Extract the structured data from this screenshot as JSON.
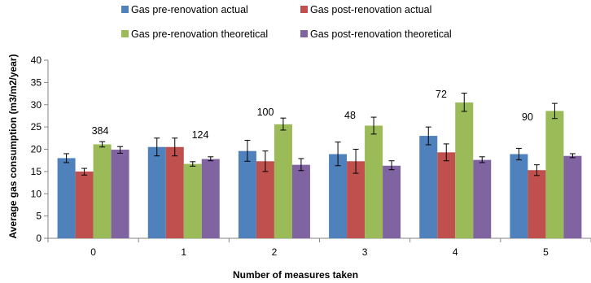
{
  "chart_data": {
    "type": "bar",
    "title": "",
    "xlabel": "Number of measures taken",
    "ylabel": "Average gas consumption (m3/m2/year)",
    "ylim": [
      0,
      40
    ],
    "yticks": [
      "0",
      "5",
      "10",
      "15",
      "20",
      "25",
      "30",
      "35",
      "40"
    ],
    "grid": false,
    "legend_position": "top",
    "categories": [
      "0",
      "1",
      "2",
      "3",
      "4",
      "5"
    ],
    "annotations": [
      "384",
      "124",
      "100",
      "48",
      "72",
      "90"
    ],
    "series": [
      {
        "name": "Gas pre-renovation actual",
        "color": "#4f81bd",
        "values": [
          18.0,
          20.5,
          19.6,
          18.9,
          23.0,
          18.9
        ],
        "error_low": [
          17.0,
          18.5,
          17.3,
          16.3,
          21.0,
          17.6
        ],
        "error_high": [
          19.0,
          22.5,
          22.0,
          21.6,
          25.0,
          20.2
        ]
      },
      {
        "name": "Gas post-renovation actual",
        "color": "#c0504d",
        "values": [
          15.0,
          20.5,
          17.3,
          17.3,
          19.3,
          15.3
        ],
        "error_low": [
          14.2,
          18.5,
          15.0,
          14.6,
          17.4,
          14.1
        ],
        "error_high": [
          15.7,
          22.5,
          19.6,
          20.0,
          21.2,
          16.5
        ]
      },
      {
        "name": "Gas pre-renovation theoretical",
        "color": "#9bbb59",
        "values": [
          21.1,
          16.7,
          25.6,
          25.3,
          30.5,
          28.6
        ],
        "error_low": [
          20.5,
          16.2,
          24.3,
          23.4,
          28.5,
          26.9
        ],
        "error_high": [
          21.7,
          17.2,
          27.0,
          27.2,
          32.6,
          30.3
        ]
      },
      {
        "name": "Gas post-renovation theoretical",
        "color": "#8064a2",
        "values": [
          19.9,
          17.8,
          16.5,
          16.3,
          17.6,
          18.5
        ],
        "error_low": [
          19.1,
          17.4,
          15.2,
          15.4,
          17.0,
          18.1
        ],
        "error_high": [
          20.6,
          18.3,
          17.9,
          17.4,
          18.3,
          19.0
        ]
      }
    ]
  }
}
